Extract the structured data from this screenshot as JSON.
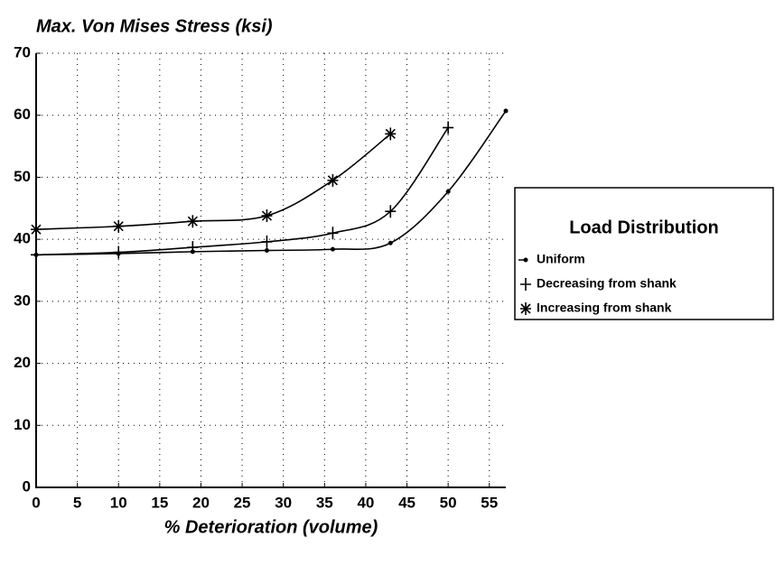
{
  "chart_data": {
    "type": "line",
    "title": "Max. Von Mises Stress (ksi)",
    "x_label": "% Deterioration (volume)",
    "legend_title": "Load Distribution",
    "legend": "right",
    "grid": true,
    "xlim": [
      0,
      57
    ],
    "xticks": [
      0,
      5,
      10,
      15,
      20,
      25,
      30,
      35,
      40,
      45,
      50,
      55
    ],
    "ylim": [
      0,
      70
    ],
    "yticks": [
      0,
      10,
      20,
      30,
      40,
      50,
      60,
      70
    ],
    "series": [
      {
        "name": "Uniform",
        "color": "#000000",
        "marker": "dot",
        "x": [
          0,
          10,
          19,
          28,
          36,
          43,
          50,
          57
        ],
        "values": [
          37.5,
          37.7,
          38,
          38.2,
          38.4,
          39.4,
          47.7,
          60.7
        ]
      },
      {
        "name": "Decreasing from shank",
        "color": "#000000",
        "marker": "plus",
        "x": [
          0,
          10,
          19,
          28,
          36,
          43,
          50
        ],
        "values": [
          37.5,
          37.9,
          38.7,
          39.6,
          41,
          44.5,
          58
        ]
      },
      {
        "name": "Increasing from shank",
        "color": "#000000",
        "marker": "star",
        "x": [
          0,
          10,
          19,
          28,
          36,
          43
        ],
        "values": [
          41.6,
          42.1,
          42.9,
          43.8,
          49.5,
          57
        ]
      }
    ]
  }
}
